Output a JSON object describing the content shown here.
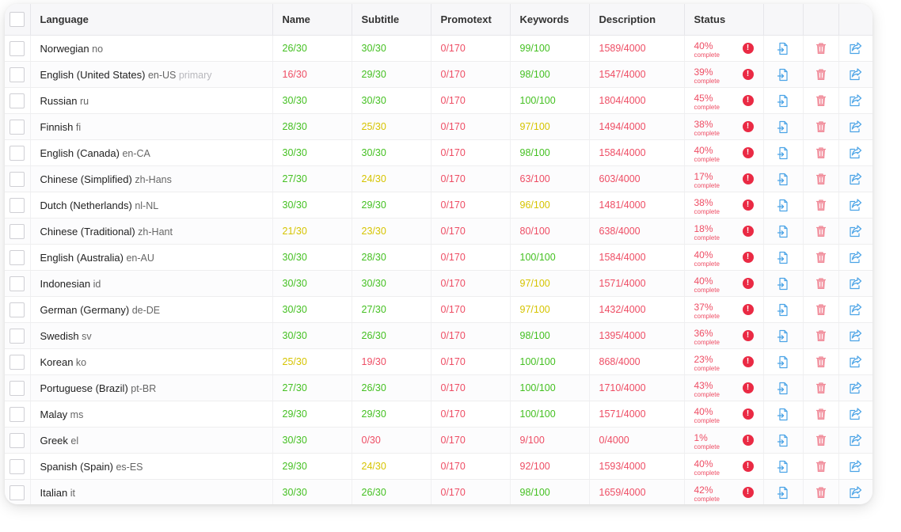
{
  "headers": {
    "language": "Language",
    "name": "Name",
    "subtitle": "Subtitle",
    "promotext": "Promotext",
    "keywords": "Keywords",
    "description": "Description",
    "status": "Status"
  },
  "status_sub": "complete",
  "colors": {
    "green": "#44c021",
    "yellow": "#d6c400",
    "red": "#ee4d64",
    "blue": "#4aa3e6",
    "pink": "#f08a98"
  },
  "icons": {
    "warning": "exclamation-circle-icon",
    "import": "file-import-icon",
    "delete": "trash-icon",
    "export": "share-export-icon"
  },
  "rows": [
    {
      "lang": "Norwegian",
      "code": "no",
      "primary": "",
      "name": "26/30",
      "name_c": "green",
      "subtitle": "30/30",
      "subtitle_c": "green",
      "promotext": "0/170",
      "promotext_c": "red",
      "keywords": "99/100",
      "keywords_c": "green",
      "description": "1589/4000",
      "description_c": "red",
      "pct": "40%"
    },
    {
      "lang": "English (United States)",
      "code": "en-US",
      "primary": "primary",
      "name": "16/30",
      "name_c": "red",
      "subtitle": "29/30",
      "subtitle_c": "green",
      "promotext": "0/170",
      "promotext_c": "red",
      "keywords": "98/100",
      "keywords_c": "green",
      "description": "1547/4000",
      "description_c": "red",
      "pct": "39%"
    },
    {
      "lang": "Russian",
      "code": "ru",
      "primary": "",
      "name": "30/30",
      "name_c": "green",
      "subtitle": "30/30",
      "subtitle_c": "green",
      "promotext": "0/170",
      "promotext_c": "red",
      "keywords": "100/100",
      "keywords_c": "green",
      "description": "1804/4000",
      "description_c": "red",
      "pct": "45%"
    },
    {
      "lang": "Finnish",
      "code": "fi",
      "primary": "",
      "name": "28/30",
      "name_c": "green",
      "subtitle": "25/30",
      "subtitle_c": "yellow",
      "promotext": "0/170",
      "promotext_c": "red",
      "keywords": "97/100",
      "keywords_c": "yellow",
      "description": "1494/4000",
      "description_c": "red",
      "pct": "38%"
    },
    {
      "lang": "English (Canada)",
      "code": "en-CA",
      "primary": "",
      "name": "30/30",
      "name_c": "green",
      "subtitle": "30/30",
      "subtitle_c": "green",
      "promotext": "0/170",
      "promotext_c": "red",
      "keywords": "98/100",
      "keywords_c": "green",
      "description": "1584/4000",
      "description_c": "red",
      "pct": "40%"
    },
    {
      "lang": "Chinese (Simplified)",
      "code": "zh-Hans",
      "primary": "",
      "name": "27/30",
      "name_c": "green",
      "subtitle": "24/30",
      "subtitle_c": "yellow",
      "promotext": "0/170",
      "promotext_c": "red",
      "keywords": "63/100",
      "keywords_c": "red",
      "description": "603/4000",
      "description_c": "red",
      "pct": "17%"
    },
    {
      "lang": "Dutch (Netherlands)",
      "code": "nl-NL",
      "primary": "",
      "name": "30/30",
      "name_c": "green",
      "subtitle": "29/30",
      "subtitle_c": "green",
      "promotext": "0/170",
      "promotext_c": "red",
      "keywords": "96/100",
      "keywords_c": "yellow",
      "description": "1481/4000",
      "description_c": "red",
      "pct": "38%"
    },
    {
      "lang": "Chinese (Traditional)",
      "code": "zh-Hant",
      "primary": "",
      "name": "21/30",
      "name_c": "yellow",
      "subtitle": "23/30",
      "subtitle_c": "yellow",
      "promotext": "0/170",
      "promotext_c": "red",
      "keywords": "80/100",
      "keywords_c": "red",
      "description": "638/4000",
      "description_c": "red",
      "pct": "18%"
    },
    {
      "lang": "English (Australia)",
      "code": "en-AU",
      "primary": "",
      "name": "30/30",
      "name_c": "green",
      "subtitle": "28/30",
      "subtitle_c": "green",
      "promotext": "0/170",
      "promotext_c": "red",
      "keywords": "100/100",
      "keywords_c": "green",
      "description": "1584/4000",
      "description_c": "red",
      "pct": "40%"
    },
    {
      "lang": "Indonesian",
      "code": "id",
      "primary": "",
      "name": "30/30",
      "name_c": "green",
      "subtitle": "30/30",
      "subtitle_c": "green",
      "promotext": "0/170",
      "promotext_c": "red",
      "keywords": "97/100",
      "keywords_c": "yellow",
      "description": "1571/4000",
      "description_c": "red",
      "pct": "40%"
    },
    {
      "lang": "German (Germany)",
      "code": "de-DE",
      "primary": "",
      "name": "30/30",
      "name_c": "green",
      "subtitle": "27/30",
      "subtitle_c": "green",
      "promotext": "0/170",
      "promotext_c": "red",
      "keywords": "97/100",
      "keywords_c": "yellow",
      "description": "1432/4000",
      "description_c": "red",
      "pct": "37%"
    },
    {
      "lang": "Swedish",
      "code": "sv",
      "primary": "",
      "name": "30/30",
      "name_c": "green",
      "subtitle": "26/30",
      "subtitle_c": "green",
      "promotext": "0/170",
      "promotext_c": "red",
      "keywords": "98/100",
      "keywords_c": "green",
      "description": "1395/4000",
      "description_c": "red",
      "pct": "36%"
    },
    {
      "lang": "Korean",
      "code": "ko",
      "primary": "",
      "name": "25/30",
      "name_c": "yellow",
      "subtitle": "19/30",
      "subtitle_c": "red",
      "promotext": "0/170",
      "promotext_c": "red",
      "keywords": "100/100",
      "keywords_c": "green",
      "description": "868/4000",
      "description_c": "red",
      "pct": "23%"
    },
    {
      "lang": "Portuguese (Brazil)",
      "code": "pt-BR",
      "primary": "",
      "name": "27/30",
      "name_c": "green",
      "subtitle": "26/30",
      "subtitle_c": "green",
      "promotext": "0/170",
      "promotext_c": "red",
      "keywords": "100/100",
      "keywords_c": "green",
      "description": "1710/4000",
      "description_c": "red",
      "pct": "43%"
    },
    {
      "lang": "Malay",
      "code": "ms",
      "primary": "",
      "name": "29/30",
      "name_c": "green",
      "subtitle": "29/30",
      "subtitle_c": "green",
      "promotext": "0/170",
      "promotext_c": "red",
      "keywords": "100/100",
      "keywords_c": "green",
      "description": "1571/4000",
      "description_c": "red",
      "pct": "40%"
    },
    {
      "lang": "Greek",
      "code": "el",
      "primary": "",
      "name": "30/30",
      "name_c": "green",
      "subtitle": "0/30",
      "subtitle_c": "red",
      "promotext": "0/170",
      "promotext_c": "red",
      "keywords": "9/100",
      "keywords_c": "red",
      "description": "0/4000",
      "description_c": "red",
      "pct": "1%"
    },
    {
      "lang": "Spanish (Spain)",
      "code": "es-ES",
      "primary": "",
      "name": "29/30",
      "name_c": "green",
      "subtitle": "24/30",
      "subtitle_c": "yellow",
      "promotext": "0/170",
      "promotext_c": "red",
      "keywords": "92/100",
      "keywords_c": "red",
      "description": "1593/4000",
      "description_c": "red",
      "pct": "40%"
    },
    {
      "lang": "Italian",
      "code": "it",
      "primary": "",
      "name": "30/30",
      "name_c": "green",
      "subtitle": "26/30",
      "subtitle_c": "green",
      "promotext": "0/170",
      "promotext_c": "red",
      "keywords": "98/100",
      "keywords_c": "green",
      "description": "1659/4000",
      "description_c": "red",
      "pct": "42%"
    }
  ]
}
